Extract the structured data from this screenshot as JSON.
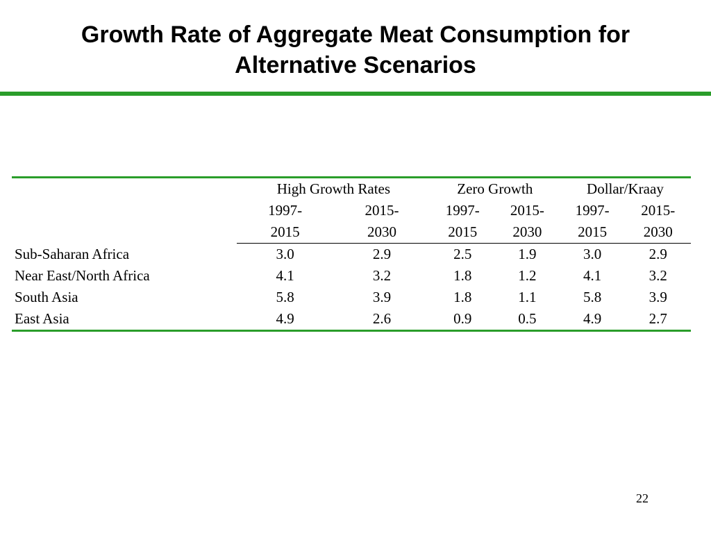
{
  "slide": {
    "title_line1": "Growth Rate of Aggregate Meat Consumption for",
    "title_line2": "Alternative Scenarios",
    "page_number": "22",
    "accent_color": "#2a9d2a"
  },
  "table": {
    "groups": [
      "High Growth Rates",
      "Zero Growth",
      "Dollar/Kraay"
    ],
    "periods_top": [
      "1997-",
      "2015-",
      "1997-",
      "2015-",
      "1997-",
      "2015-"
    ],
    "periods_bottom": [
      "2015",
      "2030",
      "2015",
      "2030",
      "2015",
      "2030"
    ],
    "rows": [
      {
        "label": "Sub-Saharan Africa",
        "values": [
          "3.0",
          "2.9",
          "2.5",
          "1.9",
          "3.0",
          "2.9"
        ]
      },
      {
        "label": "Near East/North Africa",
        "values": [
          "4.1",
          "3.2",
          "1.8",
          "1.2",
          "4.1",
          "3.2"
        ]
      },
      {
        "label": "South Asia",
        "values": [
          "5.8",
          "3.9",
          "1.8",
          "1.1",
          "5.8",
          "3.9"
        ]
      },
      {
        "label": "East Asia",
        "values": [
          "4.9",
          "2.6",
          "0.9",
          "0.5",
          "4.9",
          "2.7"
        ]
      }
    ]
  }
}
